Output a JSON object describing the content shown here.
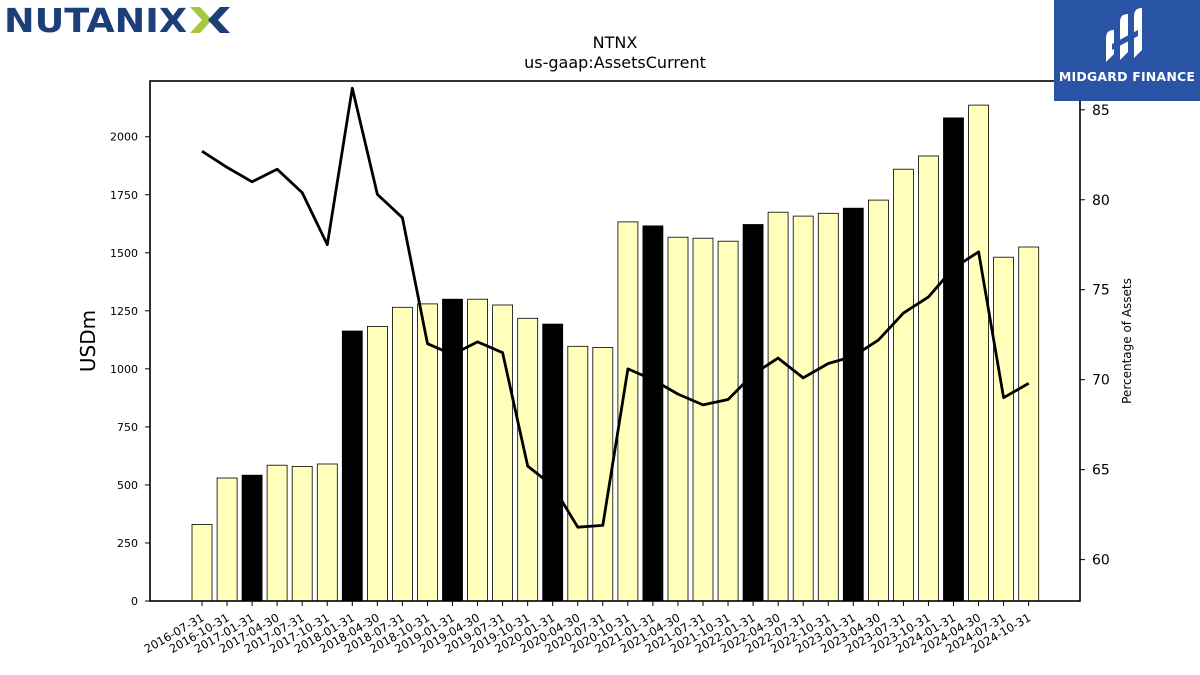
{
  "branding": {
    "left_logo_text": "NUTANIX",
    "right_logo_text": "MIDGARD FINANCE",
    "right_logo_bg": "#2a55a6",
    "left_logo_color": "#1c3f7a",
    "left_logo_accent": "#a6c93b"
  },
  "chart_data": {
    "type": "bar",
    "title": "NTNX",
    "subtitle": "us-gaap:AssetsCurrent",
    "ylabel": "USDm",
    "y2label": "Percentage of Assets",
    "ylim": [
      0,
      2240
    ],
    "y2lim": [
      57.7,
      86.6
    ],
    "yticks": [
      "0",
      "250",
      "500",
      "750",
      "1000",
      "1250",
      "1500",
      "1750",
      "2000"
    ],
    "y2ticks": [
      "60",
      "65",
      "70",
      "75",
      "80",
      "85"
    ],
    "categories": [
      "2016-07-31",
      "2016-10-31",
      "2017-01-31",
      "2017-04-30",
      "2017-07-31",
      "2017-10-31",
      "2018-01-31",
      "2018-04-30",
      "2018-07-31",
      "2018-10-31",
      "2019-01-31",
      "2019-04-30",
      "2019-07-31",
      "2019-10-31",
      "2020-01-31",
      "2020-04-30",
      "2020-07-31",
      "2020-10-31",
      "2021-01-31",
      "2021-04-30",
      "2021-07-31",
      "2021-10-31",
      "2022-01-31",
      "2022-04-30",
      "2022-07-31",
      "2022-10-31",
      "2023-01-31",
      "2023-04-30",
      "2023-07-31",
      "2023-10-31",
      "2024-01-31",
      "2024-04-30",
      "2024-07-31",
      "2024-10-31"
    ],
    "series": [
      {
        "kind": "bar",
        "values": [
          330,
          530,
          542,
          585,
          580,
          590,
          1163,
          1183,
          1265,
          1280,
          1300,
          1300,
          1275,
          1218,
          1193,
          1097,
          1092,
          1633,
          1616,
          1567,
          1563,
          1550,
          1622,
          1675,
          1658,
          1670,
          1692,
          1727,
          1860,
          1917,
          2081,
          2136,
          1481,
          1525
        ],
        "highlighted": [
          false,
          false,
          true,
          false,
          false,
          false,
          true,
          false,
          false,
          false,
          true,
          false,
          false,
          false,
          true,
          false,
          false,
          false,
          true,
          false,
          false,
          false,
          true,
          false,
          false,
          false,
          true,
          false,
          false,
          false,
          true,
          false,
          false,
          false
        ],
        "color": "#ffffbb",
        "highlight_color": "#000000"
      },
      {
        "kind": "line",
        "axis": "right",
        "values": [
          82.7,
          81.8,
          81.0,
          81.7,
          80.4,
          77.5,
          86.2,
          80.3,
          79.0,
          72.0,
          71.4,
          72.1,
          71.5,
          65.2,
          64.1,
          61.8,
          61.9,
          70.6,
          70.0,
          69.2,
          68.6,
          68.9,
          70.3,
          71.2,
          70.1,
          70.9,
          71.3,
          72.2,
          73.7,
          74.6,
          76.2,
          77.1,
          69.0,
          69.8
        ],
        "color": "#000000"
      }
    ]
  }
}
